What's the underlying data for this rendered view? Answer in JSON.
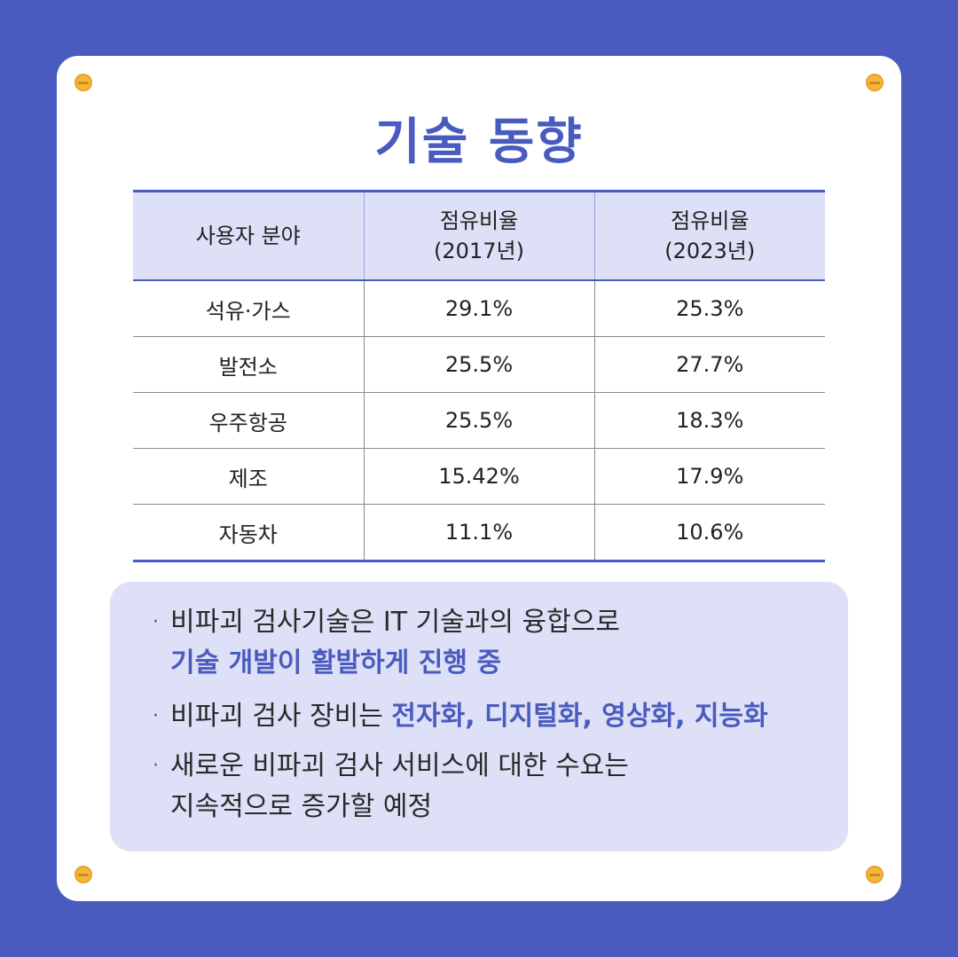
{
  "title": "기술 동향",
  "table": {
    "headers": [
      {
        "line1": "사용자 분야",
        "line2": ""
      },
      {
        "line1": "점유비율",
        "line2": "(2017년)"
      },
      {
        "line1": "점유비율",
        "line2": "(2023년)"
      }
    ],
    "rows": [
      [
        "석유·가스",
        "29.1%",
        "25.3%"
      ],
      [
        "발전소",
        "25.5%",
        "27.7%"
      ],
      [
        "우주항공",
        "25.5%",
        "18.3%"
      ],
      [
        "제조",
        "15.42%",
        "17.9%"
      ],
      [
        "자동차",
        "11.1%",
        "10.6%"
      ]
    ]
  },
  "notes": [
    {
      "plain": "비파괴 검사기술은 IT 기술과의 융합으로",
      "highlight": "기술 개발이 활발하게 진행 중"
    },
    {
      "plain": "비파괴 검사 장비는 ",
      "highlight": "전자화, 디지털화, 영상화, 지능화"
    },
    {
      "line1": "새로운 비파괴 검사 서비스에 대한 수요는",
      "line2": "지속적으로 증가할 예정"
    }
  ],
  "colors": {
    "primary": "#4a5bbf",
    "header_bg": "#dde0f6",
    "screw": "#f4b53d"
  }
}
